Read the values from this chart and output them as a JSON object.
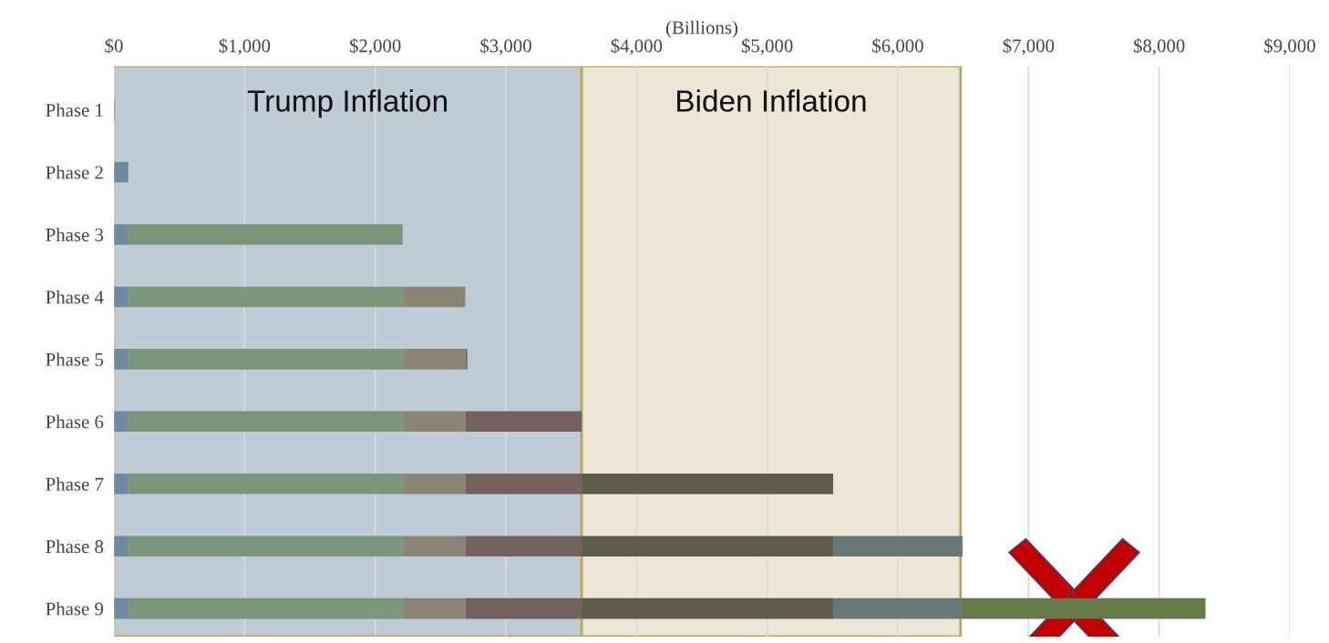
{
  "chart_data": {
    "type": "bar",
    "orientation": "horizontal",
    "stacked": true,
    "xlabel": "(Billions)",
    "categories": [
      "Phase 1",
      "Phase 2",
      "Phase 3",
      "Phase 4",
      "Phase 5",
      "Phase 6",
      "Phase 7",
      "Phase 8",
      "Phase 9"
    ],
    "series": [
      {
        "color": "#8a9aa8",
        "values": [
          5,
          5,
          5,
          5,
          5,
          5,
          5,
          5,
          5
        ]
      },
      {
        "color": "#6d8aa0",
        "values": [
          null,
          105,
          105,
          105,
          105,
          105,
          105,
          105,
          105
        ]
      },
      {
        "color": "#7a957a",
        "values": [
          null,
          null,
          2100,
          2100,
          2100,
          2100,
          2100,
          2100,
          2100
        ]
      },
      {
        "color": "#8a8577",
        "values": [
          null,
          null,
          null,
          480,
          480,
          480,
          480,
          480,
          480
        ]
      },
      {
        "color": "#6e6a66",
        "values": [
          null,
          null,
          null,
          null,
          15,
          0,
          0,
          0,
          0
        ]
      },
      {
        "color": "#74605d",
        "values": [
          null,
          null,
          null,
          null,
          null,
          890,
          890,
          890,
          890
        ]
      },
      {
        "color": "#5e5a4c",
        "values": [
          null,
          null,
          null,
          null,
          null,
          null,
          1925,
          1925,
          1925
        ]
      },
      {
        "color": "#687878",
        "values": [
          null,
          null,
          null,
          null,
          null,
          null,
          null,
          990,
          980
        ]
      },
      {
        "color": "#677a4a",
        "values": [
          null,
          null,
          null,
          null,
          null,
          null,
          null,
          null,
          1870
        ]
      }
    ],
    "xlim": [
      0,
      9000
    ],
    "xticks": [
      {
        "value": 0,
        "label": "$0"
      },
      {
        "value": 1000,
        "label": "$1,000"
      },
      {
        "value": 2000,
        "label": "$2,000"
      },
      {
        "value": 3000,
        "label": "$3,000"
      },
      {
        "value": 4000,
        "label": "$4,000"
      },
      {
        "value": 5000,
        "label": "$5,000"
      },
      {
        "value": 6000,
        "label": "$6,000"
      },
      {
        "value": 7000,
        "label": "$7,000"
      },
      {
        "value": 8000,
        "label": "$8,000"
      },
      {
        "value": 9000,
        "label": "$9,000"
      }
    ],
    "grid": "x",
    "bands": [
      {
        "axis": "x",
        "from": 0,
        "to": 3580,
        "label": "Trump Inflation",
        "color": "#bfcbd5"
      },
      {
        "axis": "x",
        "from": 3580,
        "to": 6480,
        "label": "Biden Inflation",
        "color": "#ebe6d8"
      }
    ]
  }
}
